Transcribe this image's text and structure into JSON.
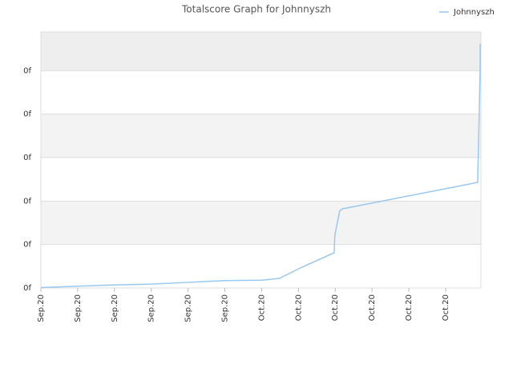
{
  "chart_data": {
    "type": "line",
    "title": "Totalscore Graph for Johnnyszh",
    "x": [
      0,
      0.92,
      1.96,
      3.0,
      4.0,
      5.0,
      6.0,
      6.48,
      7.05,
      7.97,
      7.99,
      8.12,
      8.19,
      11.87,
      11.89,
      11.92,
      11.94,
      11.94
    ],
    "series": [
      {
        "name": "Johnnyszh",
        "color": "#99c8ee",
        "values": [
          0.01,
          0.04,
          0.07,
          0.09,
          0.13,
          0.17,
          0.18,
          0.22,
          0.46,
          0.81,
          1.22,
          1.77,
          1.82,
          2.43,
          3.13,
          4.27,
          5.16,
          5.62
        ]
      }
    ],
    "xlim": [
      0,
      11.96
    ],
    "xticks": [
      {
        "value": 0,
        "label": "Sep.20"
      },
      {
        "value": 1,
        "label": "Sep.20"
      },
      {
        "value": 2,
        "label": "Sep.20"
      },
      {
        "value": 3,
        "label": "Sep.20"
      },
      {
        "value": 4,
        "label": "Sep.20"
      },
      {
        "value": 5,
        "label": "Sep.20"
      },
      {
        "value": 6,
        "label": "Oct.20"
      },
      {
        "value": 7,
        "label": "Oct.20"
      },
      {
        "value": 8,
        "label": "Oct.20"
      },
      {
        "value": 9,
        "label": "Oct.20"
      },
      {
        "value": 10,
        "label": "Oct.20"
      },
      {
        "value": 11,
        "label": "Oct.20"
      }
    ],
    "ylim": [
      0,
      5.89
    ],
    "yticks": [
      {
        "value": 0,
        "label": "0f"
      },
      {
        "value": 1,
        "label": "0f"
      },
      {
        "value": 2,
        "label": "0f"
      },
      {
        "value": 3,
        "label": "0f"
      },
      {
        "value": 4,
        "label": "0f"
      },
      {
        "value": 5,
        "label": "0f"
      }
    ],
    "grid": true,
    "legend": "top-right"
  }
}
